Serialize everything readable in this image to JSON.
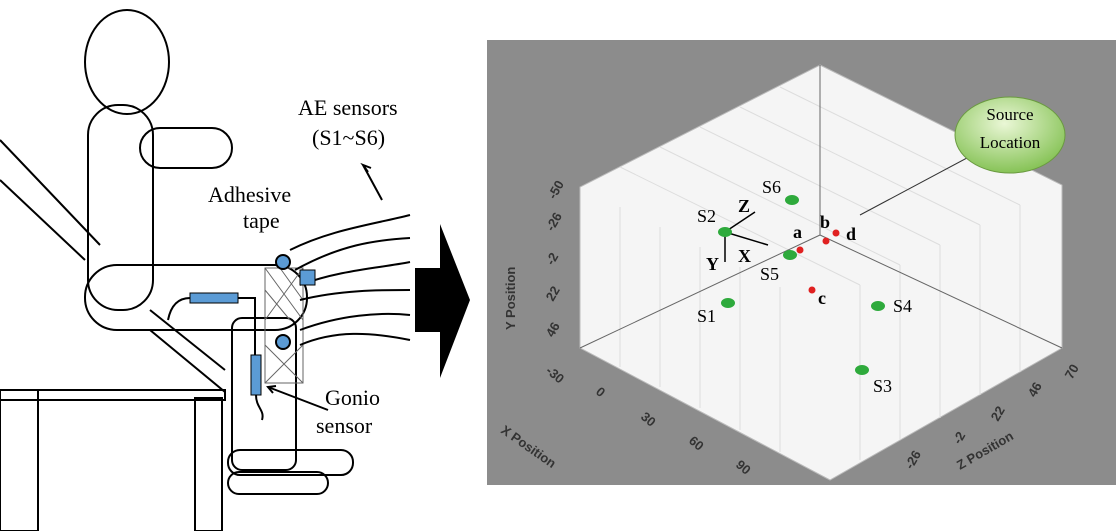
{
  "left_panel": {
    "labels": {
      "ae_sensors": "AE sensors",
      "sensor_range": "(S1~S6)",
      "adhesive": "Adhesive",
      "tape": "tape",
      "gonio": "Gonio",
      "gonio_sensor": "sensor"
    }
  },
  "right_panel": {
    "callout": [
      "Source",
      "Location"
    ],
    "sensors": [
      "S1",
      "S2",
      "S3",
      "S4",
      "S5",
      "S6"
    ],
    "sources": [
      "a",
      "b",
      "c",
      "d"
    ],
    "axes_arrows": [
      "X",
      "Y",
      "Z"
    ],
    "y_axis": {
      "label": "Y Position",
      "ticks": [
        "-50",
        "-26",
        "-2",
        "22",
        "46"
      ]
    },
    "x_axis": {
      "label": "X Position",
      "ticks": [
        "-30",
        "0",
        "30",
        "60",
        "90"
      ]
    },
    "z_axis": {
      "label": "Z Position",
      "ticks": [
        "70",
        "46",
        "22",
        "-2",
        "-26"
      ]
    }
  }
}
